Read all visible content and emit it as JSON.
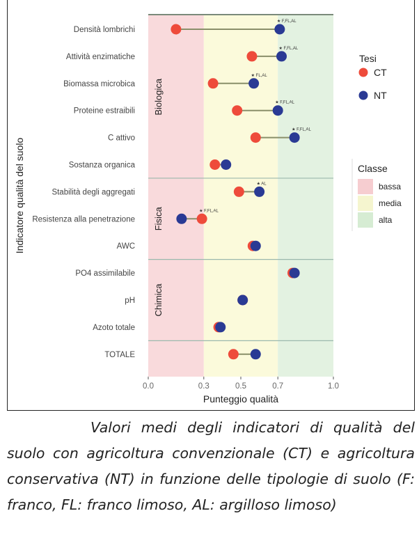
{
  "chart_data": {
    "type": "dumbbell",
    "title": "",
    "xlabel": "Punteggio qualità",
    "ylabel": "Indicatore qualità del suolo",
    "xlim": [
      0.0,
      1.0
    ],
    "xticks": [
      0.0,
      0.3,
      0.5,
      0.7,
      1.0
    ],
    "xtick_labels": [
      "0.0",
      "0.3",
      "0.5",
      "0.7",
      "1.0"
    ],
    "bands": [
      {
        "name": "bassa",
        "from": 0.0,
        "to": 0.3,
        "color": "#f9dadc"
      },
      {
        "name": "media",
        "from": 0.3,
        "to": 0.7,
        "color": "#fbfadb"
      },
      {
        "name": "alta",
        "from": 0.7,
        "to": 1.0,
        "color": "#e3f2e1"
      }
    ],
    "groups": [
      {
        "name": "Biologica",
        "categories": [
          "Densità lombrichi",
          "Attività enzimatiche",
          "Biomassa microbica",
          "Proteine estraibili",
          "C attivo",
          "Sostanza organica"
        ]
      },
      {
        "name": "Fisica",
        "categories": [
          "Stabilità degli aggregati",
          "Resistenza alla penetrazione",
          "AWC"
        ]
      },
      {
        "name": "Chimica",
        "categories": [
          "PO4 assimilabile",
          "pH",
          "Azoto totale"
        ]
      },
      {
        "name": "",
        "categories": [
          "TOTALE"
        ]
      }
    ],
    "categories": [
      "Densità lombrichi",
      "Attività enzimatiche",
      "Biomassa microbica",
      "Proteine estraibili",
      "C attivo",
      "Sostanza organica",
      "Stabilità degli aggregati",
      "Resistenza alla penetrazione",
      "AWC",
      "PO4 assimilabile",
      "pH",
      "Azoto totale",
      "TOTALE"
    ],
    "series": [
      {
        "name": "CT",
        "color": "#ee4b3b",
        "values": [
          0.15,
          0.56,
          0.35,
          0.48,
          0.58,
          0.36,
          0.49,
          0.29,
          0.565,
          0.78,
          0.51,
          0.38,
          0.46
        ]
      },
      {
        "name": "NT",
        "color": "#2a3a94",
        "values": [
          0.71,
          0.72,
          0.57,
          0.7,
          0.79,
          0.42,
          0.6,
          0.18,
          0.58,
          0.79,
          0.51,
          0.39,
          0.58
        ]
      }
    ],
    "annotations": [
      "★ F,FL,AL",
      "★ F,FL,AL",
      "★ FL,AL",
      "★ F,FL,AL",
      "★ F,FL,AL",
      "",
      "★ AL",
      "★ F,FL,AL",
      "",
      "",
      "",
      "",
      ""
    ],
    "legend": {
      "placement": "right",
      "series_title": "Tesi",
      "bands_title": "Classe"
    },
    "grid": false
  },
  "caption": "Valori medi degli indicatori di qualità del suolo con agricoltura convenzionale (CT) e agricoltura conservativa (NT) in funzione delle tipologie di suolo (F: franco, FL: franco limoso, AL: argilloso limoso)"
}
